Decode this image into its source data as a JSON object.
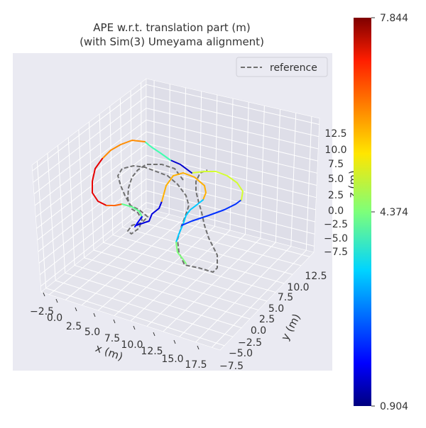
{
  "chart_data": {
    "type": "line",
    "projection": "3d",
    "title": "APE w.r.t. translation part (m)",
    "subtitle": "(with Sim(3) Umeyama alignment)",
    "xlabel": "x (m)",
    "ylabel": "y (m)",
    "zlabel": "z (m)",
    "x_ticks": [
      "−2.5",
      "0.0",
      "2.5",
      "5.0",
      "7.5",
      "10.0",
      "12.5",
      "15.0",
      "17.5"
    ],
    "y_ticks": [
      "−7.5",
      "−5.0",
      "−2.5",
      "0.0",
      "2.5",
      "5.0",
      "7.5",
      "10.0",
      "12.5"
    ],
    "z_ticks": [
      "−7.5",
      "−5.0",
      "−2.5",
      "0.0",
      "2.5",
      "5.0",
      "7.5",
      "10.0",
      "12.5"
    ],
    "legend": {
      "placement": "top-right",
      "entries": [
        {
          "label": "reference",
          "style": "dashed",
          "color": "#707070"
        }
      ]
    },
    "colorbar": {
      "colormap": "jet",
      "min_label": "0.904",
      "mid_label": "4.374",
      "max_label": "7.844",
      "min": 0.904,
      "mid": 4.374,
      "max": 7.844
    },
    "grid": true,
    "background": "#eaeaf2"
  }
}
